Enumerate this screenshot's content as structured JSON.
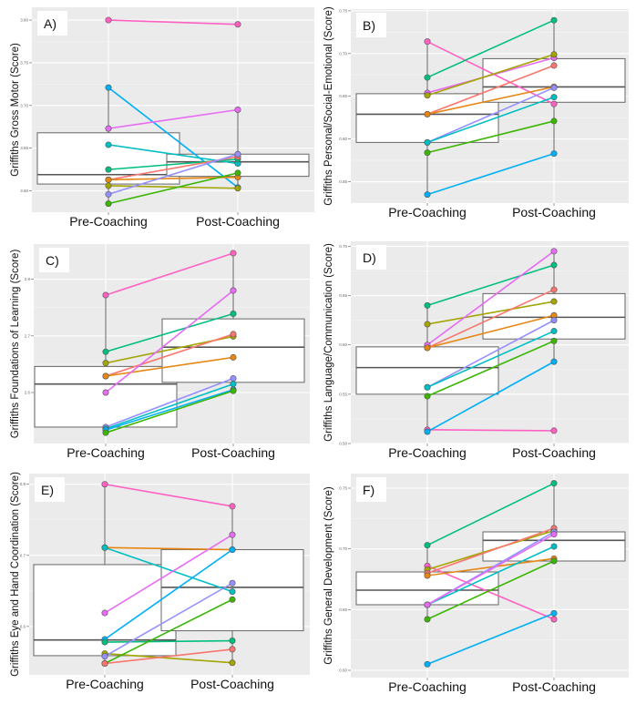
{
  "figure": {
    "category_labels": [
      "Pre-Coaching",
      "Post-Coaching"
    ],
    "series_colors": {
      "pink": "#FF61C3",
      "blue": "#00B0F6",
      "magenta": "#E76BF3",
      "teal": "#00BFC4",
      "green_teal": "#00BF7D",
      "red": "#F8766D",
      "orange": "#E68613",
      "olive": "#A3A500",
      "purple": "#9590FF",
      "green": "#39B600"
    },
    "panel_background": "#EBEBEB",
    "box_fill": "#FFFFFF",
    "box_stroke": "#666666"
  },
  "chart_data": [
    {
      "type": "boxplot-paired-line",
      "panel_label": "A)",
      "title": "",
      "xlabel": "",
      "ylabel": "Griffiths Gross Motor (Score)",
      "categories": [
        "Pre-Coaching",
        "Post-Coaching"
      ],
      "ylim": [
        3.575,
        3.815
      ],
      "yticks": [
        3.6,
        3.65,
        3.7,
        3.75,
        3.8
      ],
      "ytick_labels": [
        "3.60",
        "3.65",
        "3.70",
        "3.75",
        "3.80"
      ],
      "grid": true,
      "boxes": [
        {
          "category": "Pre-Coaching",
          "q1": 3.608,
          "median": 3.619,
          "q3": 3.668,
          "whisker_low": 3.585,
          "whisker_high": 3.721
        },
        {
          "category": "Post-Coaching",
          "q1": 3.617,
          "median": 3.634,
          "q3": 3.643,
          "whisker_low": 3.603,
          "whisker_high": 3.695
        }
      ],
      "series": [
        {
          "name": "pink",
          "values": [
            3.8,
            3.795
          ]
        },
        {
          "name": "blue",
          "values": [
            3.721,
            3.604
          ]
        },
        {
          "name": "magenta",
          "values": [
            3.673,
            3.695
          ]
        },
        {
          "name": "teal",
          "values": [
            3.654,
            3.632
          ]
        },
        {
          "name": "green_teal",
          "values": [
            3.625,
            3.637
          ]
        },
        {
          "name": "red",
          "values": [
            3.613,
            3.64
          ]
        },
        {
          "name": "orange",
          "values": [
            3.613,
            3.616
          ]
        },
        {
          "name": "olive",
          "values": [
            3.606,
            3.603
          ]
        },
        {
          "name": "purple",
          "values": [
            3.596,
            3.643
          ]
        },
        {
          "name": "green",
          "values": [
            3.585,
            3.621
          ]
        }
      ]
    },
    {
      "type": "boxplot-paired-line",
      "panel_label": "B)",
      "title": "",
      "xlabel": "",
      "ylabel": "Griffiths Personal/Social-Emotional (Score)",
      "categories": [
        "Pre-Coaching",
        "Post-Coaching"
      ],
      "ylim": [
        0.525,
        0.752
      ],
      "yticks": [
        0.55,
        0.6,
        0.65,
        0.7,
        0.75
      ],
      "ytick_labels": [
        "0.55",
        "0.60",
        "0.65",
        "0.70",
        "0.75"
      ],
      "grid": true,
      "boxes": [
        {
          "category": "Pre-Coaching",
          "q1": 0.596,
          "median": 0.629,
          "q3": 0.653,
          "whisker_low": 0.535,
          "whisker_high": 0.714
        },
        {
          "category": "Post-Coaching",
          "q1": 0.643,
          "median": 0.661,
          "q3": 0.694,
          "whisker_low": 0.583,
          "whisker_high": 0.739
        }
      ],
      "series": [
        {
          "name": "pink",
          "values": [
            0.714,
            0.641
          ]
        },
        {
          "name": "green_teal",
          "values": [
            0.672,
            0.739
          ]
        },
        {
          "name": "magenta",
          "values": [
            0.654,
            0.695
          ]
        },
        {
          "name": "olive",
          "values": [
            0.651,
            0.699
          ]
        },
        {
          "name": "red",
          "values": [
            0.629,
            0.686
          ]
        },
        {
          "name": "orange",
          "values": [
            0.629,
            0.661
          ]
        },
        {
          "name": "purple",
          "values": [
            0.596,
            0.66
          ]
        },
        {
          "name": "teal",
          "values": [
            0.596,
            0.649
          ]
        },
        {
          "name": "green",
          "values": [
            0.584,
            0.621
          ]
        },
        {
          "name": "blue",
          "values": [
            0.535,
            0.583
          ]
        }
      ]
    },
    {
      "type": "boxplot-paired-line",
      "panel_label": "C)",
      "title": "",
      "xlabel": "",
      "ylabel": "Griffiths Foundations of Learning (Score)",
      "categories": [
        "Pre-Coaching",
        "Post-Coaching"
      ],
      "ylim": [
        2.51,
        2.862
      ],
      "yticks": [
        2.6,
        2.7,
        2.8
      ],
      "ytick_labels": [
        "2.6",
        "2.7",
        "2.8"
      ],
      "grid": true,
      "boxes": [
        {
          "category": "Pre-Coaching",
          "q1": 2.539,
          "median": 2.615,
          "q3": 2.646,
          "whisker_low": 2.529,
          "whisker_high": 2.772
        },
        {
          "category": "Post-Coaching",
          "q1": 2.618,
          "median": 2.68,
          "q3": 2.73,
          "whisker_low": 2.603,
          "whisker_high": 2.846
        }
      ],
      "series": [
        {
          "name": "pink",
          "values": [
            2.772,
            2.846
          ]
        },
        {
          "name": "green_teal",
          "values": [
            2.672,
            2.739
          ]
        },
        {
          "name": "olive",
          "values": [
            2.652,
            2.699
          ]
        },
        {
          "name": "red",
          "values": [
            2.629,
            2.703
          ]
        },
        {
          "name": "orange",
          "values": [
            2.629,
            2.662
          ]
        },
        {
          "name": "magenta",
          "values": [
            2.6,
            2.78
          ]
        },
        {
          "name": "purple",
          "values": [
            2.539,
            2.625
          ]
        },
        {
          "name": "teal",
          "values": [
            2.536,
            2.615
          ]
        },
        {
          "name": "blue",
          "values": [
            2.534,
            2.605
          ]
        },
        {
          "name": "green",
          "values": [
            2.529,
            2.603
          ]
        }
      ]
    },
    {
      "type": "boxplot-paired-line",
      "panel_label": "D)",
      "title": "",
      "xlabel": "",
      "ylabel": "Griffiths Language/Communication (Score)",
      "categories": [
        "Pre-Coaching",
        "Post-Coaching"
      ],
      "ylim": [
        0.5,
        0.705
      ],
      "yticks": [
        0.5,
        0.55,
        0.6,
        0.65,
        0.7
      ],
      "ytick_labels": [
        "0.50",
        "0.55",
        "0.60",
        "0.65",
        "0.70"
      ],
      "grid": true,
      "boxes": [
        {
          "category": "Pre-Coaching",
          "q1": 0.55,
          "median": 0.577,
          "q3": 0.598,
          "whisker_low": 0.512,
          "whisker_high": 0.64
        },
        {
          "category": "Post-Coaching",
          "q1": 0.606,
          "median": 0.628,
          "q3": 0.652,
          "whisker_low": 0.583,
          "whisker_high": 0.695
        }
      ],
      "series": [
        {
          "name": "green_teal",
          "values": [
            0.64,
            0.681
          ]
        },
        {
          "name": "olive",
          "values": [
            0.621,
            0.644
          ]
        },
        {
          "name": "magenta",
          "values": [
            0.6,
            0.695
          ]
        },
        {
          "name": "red",
          "values": [
            0.597,
            0.656
          ]
        },
        {
          "name": "orange",
          "values": [
            0.597,
            0.63
          ]
        },
        {
          "name": "purple",
          "values": [
            0.557,
            0.625
          ]
        },
        {
          "name": "teal",
          "values": [
            0.557,
            0.614
          ]
        },
        {
          "name": "green",
          "values": [
            0.548,
            0.604
          ]
        },
        {
          "name": "pink",
          "values": [
            0.514,
            0.513
          ]
        },
        {
          "name": "blue",
          "values": [
            0.512,
            0.583
          ]
        }
      ]
    },
    {
      "type": "boxplot-paired-line",
      "panel_label": "E)",
      "title": "",
      "xlabel": "",
      "ylabel": "Griffiths Eye and Hand Coordination (Score)",
      "categories": [
        "Pre-Coaching",
        "Post-Coaching"
      ],
      "ylim": [
        0.532,
        0.815
      ],
      "yticks": [
        0.6,
        0.7,
        0.8
      ],
      "ytick_labels": [
        "0.6",
        "0.7",
        "0.8"
      ],
      "grid": true,
      "boxes": [
        {
          "category": "Pre-Coaching",
          "q1": 0.559,
          "median": 0.581,
          "q3": 0.687,
          "whisker_low": 0.548,
          "whisker_high": 0.8
        },
        {
          "category": "Post-Coaching",
          "q1": 0.594,
          "median": 0.655,
          "q3": 0.708,
          "whisker_low": 0.549,
          "whisker_high": 0.769
        }
      ],
      "series": [
        {
          "name": "pink",
          "values": [
            0.8,
            0.769
          ]
        },
        {
          "name": "orange",
          "values": [
            0.711,
            0.708
          ]
        },
        {
          "name": "teal",
          "values": [
            0.711,
            0.649
          ]
        },
        {
          "name": "magenta",
          "values": [
            0.619,
            0.729
          ]
        },
        {
          "name": "blue",
          "values": [
            0.582,
            0.708
          ]
        },
        {
          "name": "green_teal",
          "values": [
            0.578,
            0.58
          ]
        },
        {
          "name": "olive",
          "values": [
            0.562,
            0.549
          ]
        },
        {
          "name": "purple",
          "values": [
            0.558,
            0.661
          ]
        },
        {
          "name": "green",
          "values": [
            0.548,
            0.638
          ]
        },
        {
          "name": "red",
          "values": [
            0.548,
            0.568
          ]
        }
      ]
    },
    {
      "type": "boxplot-paired-line",
      "panel_label": "F)",
      "title": "",
      "xlabel": "",
      "ylabel": "Griffiths General Development (Score)",
      "categories": [
        "Pre-Coaching",
        "Post-Coaching"
      ],
      "ylim": [
        0.594,
        0.762
      ],
      "yticks": [
        0.6,
        0.65,
        0.7,
        0.75
      ],
      "ytick_labels": [
        "0.60",
        "0.65",
        "0.70",
        "0.75"
      ],
      "grid": true,
      "boxes": [
        {
          "category": "Pre-Coaching",
          "q1": 0.654,
          "median": 0.666,
          "q3": 0.681,
          "whisker_low": 0.642,
          "whisker_high": 0.703
        },
        {
          "category": "Post-Coaching",
          "q1": 0.69,
          "median": 0.707,
          "q3": 0.714,
          "whisker_low": 0.69,
          "whisker_high": 0.754
        }
      ],
      "series": [
        {
          "name": "green_teal",
          "values": [
            0.703,
            0.754
          ]
        },
        {
          "name": "pink",
          "values": [
            0.686,
            0.642
          ]
        },
        {
          "name": "olive",
          "values": [
            0.683,
            0.715
          ]
        },
        {
          "name": "red",
          "values": [
            0.68,
            0.717
          ]
        },
        {
          "name": "orange",
          "values": [
            0.678,
            0.692
          ]
        },
        {
          "name": "teal",
          "values": [
            0.654,
            0.702
          ]
        },
        {
          "name": "purple",
          "values": [
            0.654,
            0.714
          ]
        },
        {
          "name": "magenta",
          "values": [
            0.654,
            0.712
          ]
        },
        {
          "name": "green",
          "values": [
            0.642,
            0.69
          ]
        },
        {
          "name": "blue",
          "values": [
            0.605,
            0.647
          ]
        }
      ]
    }
  ]
}
